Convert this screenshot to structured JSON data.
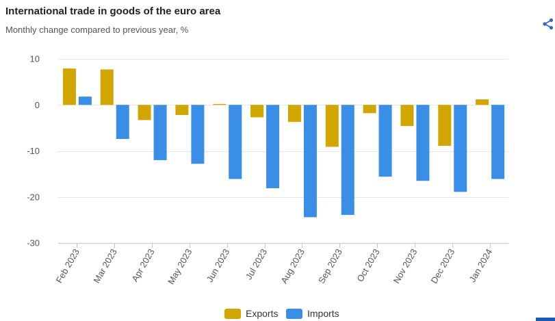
{
  "toolbar": {
    "share_icon": "share-icon"
  },
  "chart_data": {
    "type": "bar",
    "title": "International trade in goods of the euro area",
    "subtitle": "Monthly change compared to previous year, %",
    "categories": [
      "Feb 2023",
      "Mar 2023",
      "Apr 2023",
      "May 2023",
      "Jun 2023",
      "Jul 2023",
      "Aug 2023",
      "Sep 2023",
      "Oct 2023",
      "Nov 2023",
      "Dec 2023",
      "Jan 2024"
    ],
    "series": [
      {
        "name": "Exports",
        "color": "#D1A600",
        "values": [
          7.9,
          7.7,
          -3.3,
          -2.2,
          0.2,
          -2.7,
          -3.7,
          -9.1,
          -1.8,
          -4.6,
          -8.9,
          1.2
        ]
      },
      {
        "name": "Imports",
        "color": "#3A8EE6",
        "values": [
          1.8,
          -7.4,
          -12.0,
          -12.8,
          -16.1,
          -18.1,
          -24.4,
          -23.9,
          -15.6,
          -16.5,
          -18.9,
          -16.1
        ]
      }
    ],
    "ylim": [
      -30,
      10
    ],
    "yticks": [
      10,
      0,
      -10,
      -20,
      -30
    ],
    "grid": true,
    "legend": "bottom"
  }
}
